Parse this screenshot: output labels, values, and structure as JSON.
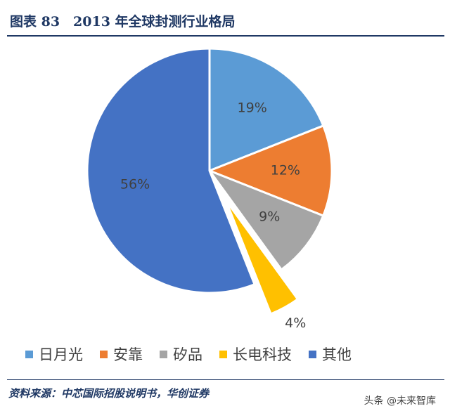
{
  "header": {
    "title": "图表 83　2013 年全球封测行业格局"
  },
  "chart_data": {
    "type": "pie",
    "title": "",
    "categories": [
      "日月光",
      "安靠",
      "矽品",
      "长电科技",
      "其他"
    ],
    "values": [
      19,
      12,
      9,
      4,
      56
    ],
    "labels": [
      "19%",
      "12%",
      "9%",
      "4%",
      "56%"
    ],
    "colors": [
      "#5b9bd5",
      "#ed7d31",
      "#a5a5a5",
      "#ffc000",
      "#4472c4"
    ],
    "exploded": [
      "长电科技"
    ],
    "legend": "bottom"
  },
  "footer": {
    "source": "资料来源：中芯国际招股说明书，华创证券",
    "watermark": "头条 @未来智库"
  }
}
